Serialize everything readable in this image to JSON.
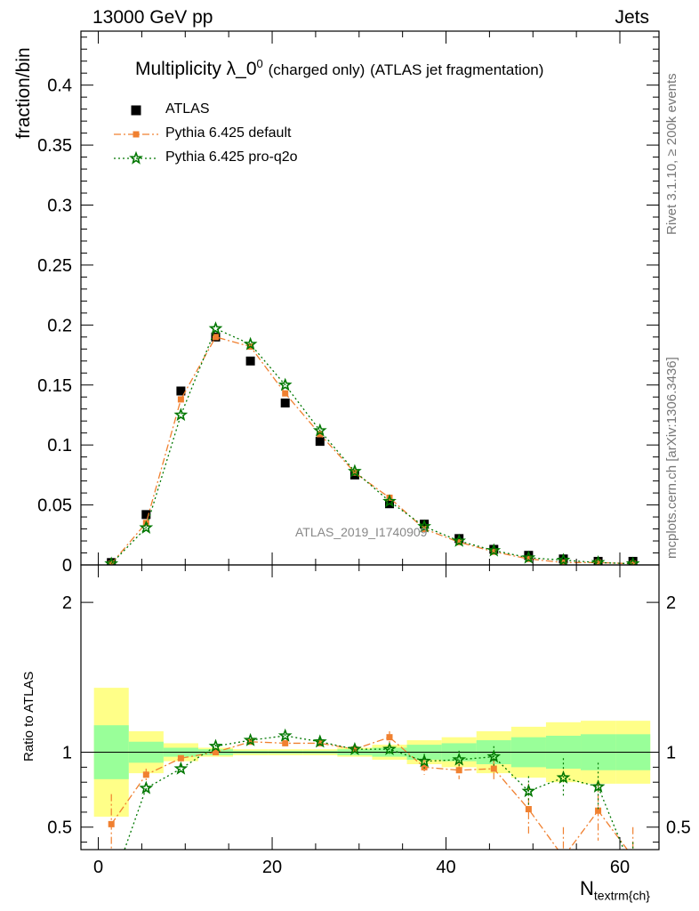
{
  "header": {
    "left": "13000 GeV pp",
    "right": "Jets",
    "side_top": "Rivet 3.1.10, ≥ 200k events",
    "side_bottom": "mcplots.cern.ch [arXiv:1306.3436]",
    "watermark": "ATLAS_2019_I1740909"
  },
  "chart_data": {
    "type": "scatter",
    "title_main": "Multiplicity λ_0",
    "title_sup": "0",
    "title_small": "(charged only)",
    "title_rest": "(ATLAS jet fragmentation)",
    "ylabel": "fraction/bin",
    "ratio_ylabel": "Ratio to ATLAS",
    "xlabel_main": "N",
    "xlabel_sub": "textrm{ch}",
    "xlim": [
      -2,
      64.5
    ],
    "ylim": [
      0,
      0.445
    ],
    "ratio_ylim": [
      0.35,
      2.25
    ],
    "x_ticks": [
      0,
      20,
      40,
      60
    ],
    "y_ticks": [
      0,
      0.05,
      0.1,
      0.15,
      0.2,
      0.25,
      0.3,
      0.35,
      0.4
    ],
    "y_tick_labels": [
      "0",
      "0.05",
      "0.1",
      "0.15",
      "0.2",
      "0.25",
      "0.3",
      "0.35",
      "0.4"
    ],
    "ratio_ticks": [
      0.5,
      1,
      2
    ],
    "ratio_tick_labels": [
      "0.5",
      "1",
      "2"
    ],
    "bin_edges": [
      -0.5,
      3.5,
      7.5,
      11.5,
      15.5,
      19.5,
      23.5,
      27.5,
      31.5,
      35.5,
      39.5,
      43.5,
      47.5,
      51.5,
      55.5,
      59.5,
      63.5
    ],
    "x": [
      1.5,
      5.5,
      9.5,
      13.5,
      17.5,
      21.5,
      25.5,
      29.5,
      33.5,
      37.5,
      41.5,
      45.5,
      49.5,
      53.5,
      57.5,
      61.5
    ],
    "series": [
      {
        "name": "ATLAS",
        "color": "#000000",
        "marker": "square",
        "values": [
          0.002,
          0.042,
          0.145,
          0.19,
          0.17,
          0.135,
          0.103,
          0.075,
          0.051,
          0.034,
          0.022,
          0.013,
          0.008,
          0.005,
          0.003,
          0.003
        ]
      },
      {
        "name": "Pythia 6.425 default",
        "color": "#f08030",
        "marker": "square-small",
        "values": [
          0.001,
          0.035,
          0.138,
          0.19,
          0.182,
          0.143,
          0.109,
          0.077,
          0.056,
          0.03,
          0.019,
          0.011,
          0.005,
          0.002,
          0.002,
          0.001
        ],
        "ratio": [
          0.52,
          0.85,
          0.96,
          1.0,
          1.07,
          1.06,
          1.06,
          1.02,
          1.1,
          0.9,
          0.88,
          0.89,
          0.62,
          0.3,
          0.61,
          0.3
        ],
        "ratio_err": [
          0.2,
          0.04,
          0.02,
          0.01,
          0.01,
          0.01,
          0.02,
          0.03,
          0.04,
          0.05,
          0.06,
          0.07,
          0.17,
          0.2,
          0.2,
          0.2
        ]
      },
      {
        "name": "Pythia 6.425 pro-q2o",
        "color": "#007700",
        "marker": "star",
        "values": [
          0.001,
          0.031,
          0.125,
          0.197,
          0.184,
          0.15,
          0.112,
          0.078,
          0.053,
          0.032,
          0.02,
          0.012,
          0.006,
          0.004,
          0.002,
          0.001
        ],
        "ratio": [
          0.1,
          0.76,
          0.89,
          1.04,
          1.08,
          1.11,
          1.07,
          1.02,
          1.02,
          0.94,
          0.95,
          0.97,
          0.74,
          0.83,
          0.77,
          0.2
        ],
        "ratio_err": [
          0.1,
          0.03,
          0.02,
          0.01,
          0.01,
          0.01,
          0.02,
          0.03,
          0.04,
          0.05,
          0.06,
          0.07,
          0.1,
          0.13,
          0.16,
          0.2
        ]
      }
    ],
    "bands": {
      "yellow_color": "#ffff88",
      "green_color": "#99ff99",
      "yellow_half_width": [
        0.43,
        0.14,
        0.06,
        0.03,
        0.02,
        0.02,
        0.02,
        0.03,
        0.05,
        0.08,
        0.1,
        0.14,
        0.17,
        0.2,
        0.21,
        0.21
      ],
      "green_half_width": [
        0.18,
        0.07,
        0.03,
        0.02,
        0.01,
        0.01,
        0.01,
        0.02,
        0.03,
        0.05,
        0.06,
        0.08,
        0.1,
        0.11,
        0.12,
        0.12
      ]
    },
    "legend_position": "top-left"
  }
}
